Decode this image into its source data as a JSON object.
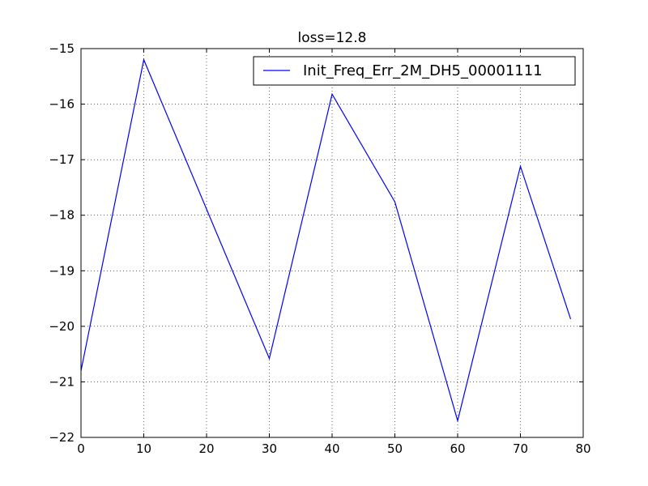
{
  "chart_data": {
    "type": "line",
    "title": "loss=12.8",
    "xlabel": "",
    "ylabel": "",
    "xlim": [
      0,
      80
    ],
    "ylim": [
      -22,
      -15
    ],
    "xticks": [
      0,
      10,
      20,
      30,
      40,
      50,
      60,
      70,
      80
    ],
    "yticks": [
      -15,
      -16,
      -17,
      -18,
      -19,
      -20,
      -21,
      -22
    ],
    "xtick_labels": [
      "0",
      "10",
      "20",
      "30",
      "40",
      "50",
      "60",
      "70",
      "80"
    ],
    "ytick_labels": [
      "−15",
      "−16",
      "−17",
      "−18",
      "−19",
      "−20",
      "−21",
      "−22"
    ],
    "grid": true,
    "legend_position": "top-right",
    "series": [
      {
        "name": "Init_Freq_Err_2M_DH5_00001111",
        "color": "#0000ff",
        "x": [
          0,
          10,
          30,
          40,
          50,
          60,
          70,
          78
        ],
        "y": [
          -20.8,
          -15.2,
          -20.58,
          -15.82,
          -17.76,
          -21.7,
          -17.12,
          -19.87
        ]
      }
    ]
  }
}
